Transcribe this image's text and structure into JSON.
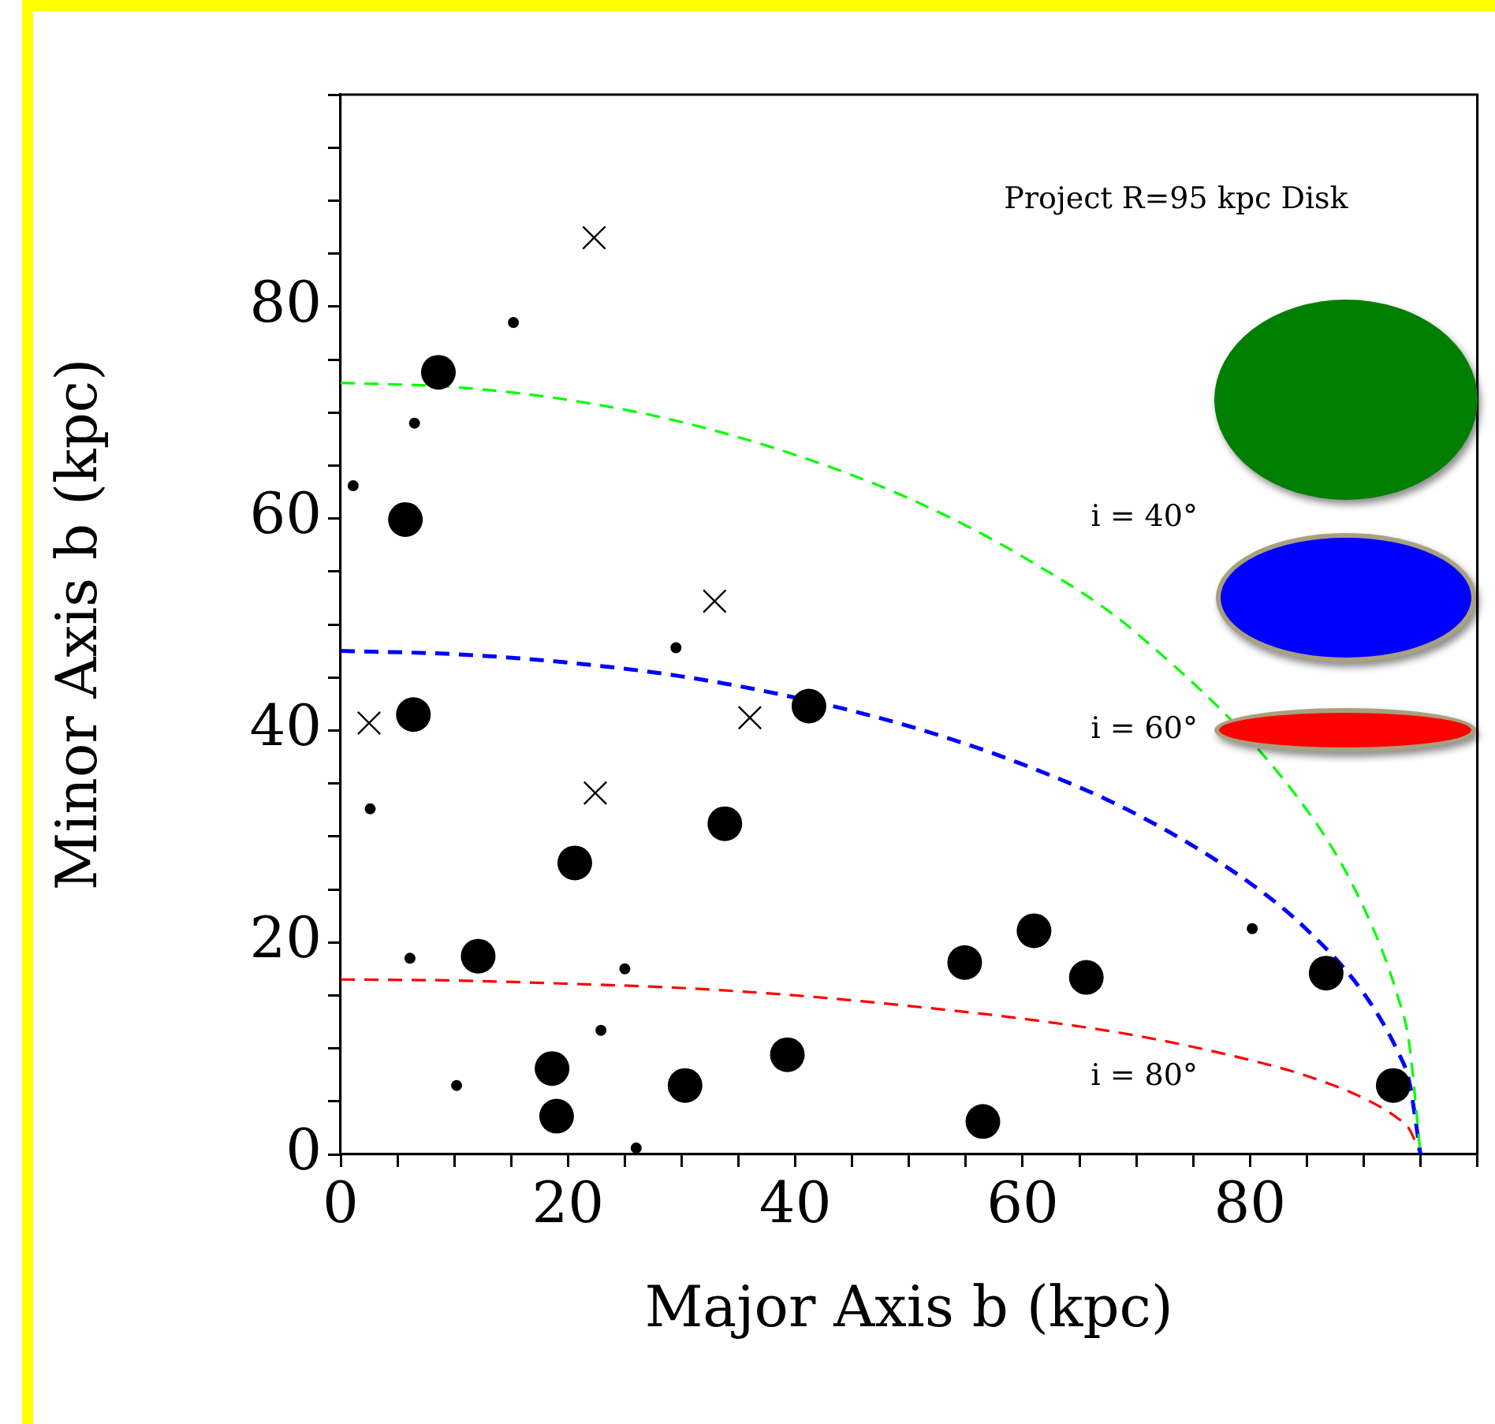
{
  "chart_data": {
    "type": "scatter",
    "xlabel": "Major Axis b (kpc)",
    "ylabel": "Minor Axis b (kpc)",
    "xlim": [
      0,
      100
    ],
    "ylim": [
      0,
      100
    ],
    "xticks": [
      0,
      {
        "value": 5,
        "label": null
      },
      {
        "value": 10,
        "label": null
      },
      {
        "value": 15,
        "label": null
      },
      20,
      {
        "value": 25,
        "label": null
      },
      {
        "value": 30,
        "label": null
      },
      {
        "value": 35,
        "label": null
      },
      40,
      {
        "value": 45,
        "label": null
      },
      {
        "value": 50,
        "label": null
      },
      {
        "value": 55,
        "label": null
      },
      60,
      {
        "value": 65,
        "label": null
      },
      {
        "value": 70,
        "label": null
      },
      {
        "value": 75,
        "label": null
      },
      80,
      {
        "value": 85,
        "label": null
      },
      {
        "value": 90,
        "label": null
      },
      {
        "value": 95,
        "label": null
      },
      {
        "value": 100,
        "label": null
      }
    ],
    "yticks": [
      0,
      {
        "value": 5,
        "label": null
      },
      {
        "value": 10,
        "label": null
      },
      {
        "value": 15,
        "label": null
      },
      20,
      {
        "value": 25,
        "label": null
      },
      {
        "value": 30,
        "label": null
      },
      {
        "value": 35,
        "label": null
      },
      40,
      {
        "value": 45,
        "label": null
      },
      {
        "value": 50,
        "label": null
      },
      {
        "value": 55,
        "label": null
      },
      60,
      {
        "value": 65,
        "label": null
      },
      {
        "value": 70,
        "label": null
      },
      {
        "value": 75,
        "label": null
      },
      80,
      {
        "value": 85,
        "label": null
      },
      {
        "value": 90,
        "label": null
      },
      {
        "value": 95,
        "label": null
      },
      {
        "value": 100,
        "label": null
      }
    ],
    "annotations": [
      "Project R=95 kpc Disk",
      "i = 40°",
      "i = 60°",
      "i = 80°"
    ],
    "series": [
      {
        "marker": "circle",
        "color": "#000000",
        "x": [
          8.6,
          5.7,
          6.4,
          41.2,
          33.8,
          20.6,
          12.1,
          18.6,
          19.0,
          30.3,
          39.3,
          54.9,
          61.0,
          65.6,
          86.7,
          92.6,
          56.5
        ],
        "values": [
          73.8,
          59.9,
          41.5,
          42.3,
          31.2,
          27.5,
          18.7,
          8.1,
          3.6,
          6.5,
          9.4,
          18.1,
          21.1,
          16.7,
          17.1,
          6.5,
          3.1
        ]
      },
      {
        "marker": "circle",
        "color": "#000000",
        "x": [
          15.2,
          6.5,
          1.1,
          29.5,
          2.6,
          6.1,
          25.0,
          22.9,
          10.2,
          26.0,
          80.2
        ],
        "values": [
          78.5,
          69.0,
          63.1,
          47.8,
          32.6,
          18.5,
          17.5,
          11.7,
          6.5,
          0.6,
          21.3
        ]
      },
      {
        "marker": "cross",
        "color": "#000000",
        "x": [
          22.3,
          32.9,
          2.5,
          36.0,
          22.4
        ],
        "values": [
          86.5,
          52.2,
          40.7,
          41.2,
          34.1
        ]
      },
      {
        "type": "line",
        "line_style": "dashed",
        "color": "#00ff00",
        "x": [
          0,
          10,
          20,
          30,
          40,
          50,
          60,
          70,
          80,
          85,
          90,
          93,
          94,
          95
        ],
        "values": [
          72.8,
          72.4,
          71.2,
          69.1,
          66.0,
          61.9,
          56.4,
          49.2,
          null,
          32.5,
          23.3,
          14.9,
          10.5,
          0
        ]
      },
      {
        "type": "line",
        "line_style": "dashed",
        "color": "#0000ff",
        "x": [
          0,
          10,
          20,
          30,
          40,
          50,
          60,
          70,
          80,
          85,
          90,
          93,
          94,
          95
        ],
        "values": [
          47.5,
          47.2,
          46.4,
          45.1,
          43.1,
          40.4,
          36.8,
          32.1,
          25.6,
          21.2,
          15.2,
          9.7,
          6.9,
          0
        ]
      },
      {
        "type": "line",
        "line_style": "dashed",
        "color": "#ff0000",
        "x": [
          0,
          10,
          20,
          30,
          40,
          50,
          60,
          70,
          80,
          85,
          90,
          93,
          94,
          95
        ],
        "values": [
          16.5,
          16.4,
          16.1,
          15.7,
          15.0,
          14.0,
          12.8,
          11.2,
          8.9,
          7.4,
          5.3,
          3.4,
          2.4,
          0
        ]
      }
    ]
  }
}
